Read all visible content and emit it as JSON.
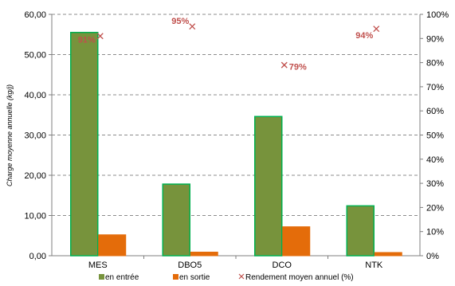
{
  "chart_data": {
    "type": "bar",
    "categories": [
      "MES",
      "DBO5",
      "DCO",
      "NTK"
    ],
    "ylabel": "Charge moyenne annuelle (kg/j)",
    "ylim": [
      0,
      60
    ],
    "y_ticks": [
      "0,00",
      "10,00",
      "20,00",
      "30,00",
      "40,00",
      "50,00",
      "60,00"
    ],
    "y2lim": [
      0,
      100
    ],
    "y2_ticks": [
      "0%",
      "10%",
      "20%",
      "30%",
      "40%",
      "50%",
      "60%",
      "70%",
      "80%",
      "90%",
      "100%"
    ],
    "grid": "horizontal-dashed",
    "legend_position": "bottom",
    "series": [
      {
        "name": "en entrée",
        "color": "#77933c",
        "edge": "#00b050",
        "values": [
          55.5,
          17.8,
          34.6,
          12.4
        ]
      },
      {
        "name": "en sortie",
        "color": "#e46c0a",
        "edge": "#e46c0a",
        "values": [
          5.2,
          0.9,
          7.2,
          0.8
        ]
      },
      {
        "name": "Rendement  moyen annuel (%)",
        "color": "#c0504d",
        "marker": "x",
        "values": [
          91,
          95,
          79,
          94
        ],
        "labels": [
          "91%",
          "95%",
          "79%",
          "94%"
        ]
      }
    ]
  }
}
